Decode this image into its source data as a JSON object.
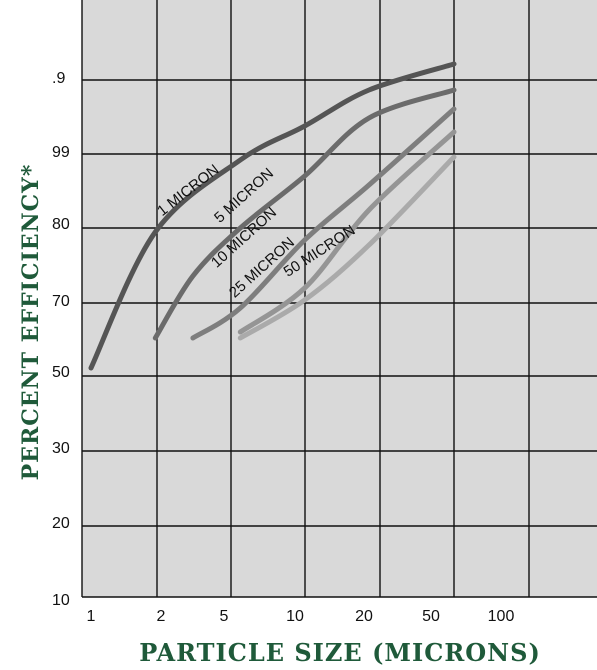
{
  "chart_data": {
    "type": "line",
    "xlabel": "PARTICLE SIZE (MICRONS)",
    "ylabel": "PERCENT EFFICIENCY*",
    "x_ticks": [
      "1",
      "2",
      "5",
      "10",
      "20",
      "50",
      "100"
    ],
    "y_ticks": [
      "10",
      "20",
      "30",
      "50",
      "70",
      "80",
      "99",
      ".9"
    ],
    "grid": true,
    "series": [
      {
        "name": "1 MICRON",
        "color": "#555555",
        "points": [
          [
            1,
            50
          ],
          [
            2,
            80
          ],
          [
            5,
            91
          ],
          [
            10,
            96
          ],
          [
            20,
            99.5
          ],
          [
            50,
            99.95
          ]
        ]
      },
      {
        "name": "5 MICRON",
        "color": "#6b6b6b",
        "points": [
          [
            2,
            61
          ],
          [
            3,
            73
          ],
          [
            5,
            80
          ],
          [
            10,
            90
          ],
          [
            20,
            98
          ],
          [
            50,
            99.8
          ]
        ]
      },
      {
        "name": "10 MICRON",
        "color": "#7e7e7e",
        "points": [
          [
            3,
            62
          ],
          [
            5,
            72
          ],
          [
            10,
            83
          ],
          [
            20,
            93
          ],
          [
            50,
            99.7
          ]
        ]
      },
      {
        "name": "25 MICRON",
        "color": "#959595",
        "points": [
          [
            5,
            62
          ],
          [
            10,
            76
          ],
          [
            20,
            88
          ],
          [
            50,
            99.4
          ]
        ]
      },
      {
        "name": "50 MICRON",
        "color": "#aaaaaa",
        "points": [
          [
            5,
            61
          ],
          [
            10,
            71
          ],
          [
            20,
            80
          ],
          [
            50,
            94
          ]
        ]
      }
    ]
  }
}
